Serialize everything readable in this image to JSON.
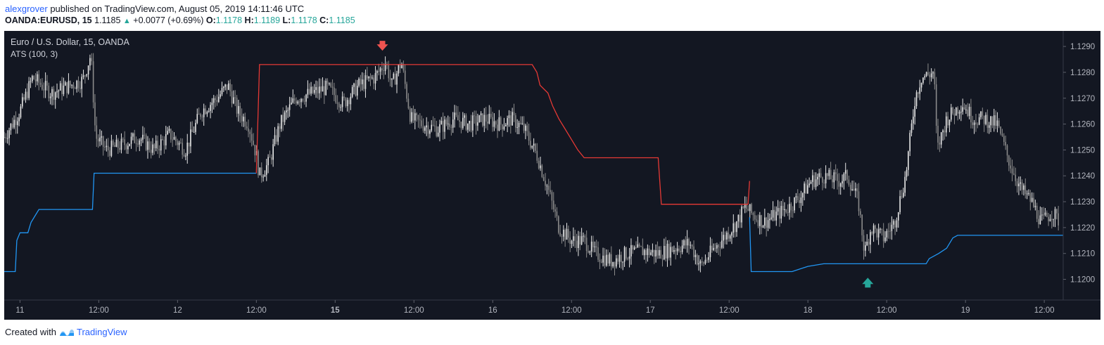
{
  "header": {
    "author": "alexgrover",
    "published_text": "published on TradingView.com, August 05, 2019 14:11:46 UTC",
    "symbol": "OANDA:EURUSD, 15",
    "last_price": "1.1185",
    "change_arrow": "▲",
    "change": "+0.0077 (+0.69%)",
    "o_label": "O:",
    "o_value": "1.1178",
    "h_label": "H:",
    "h_value": "1.1189",
    "l_label": "L:",
    "l_value": "1.1178",
    "c_label": "C:",
    "c_value": "1.1185"
  },
  "footer": {
    "created_with": "Created with",
    "brand": "TradingView",
    "logo_icon": "tradingview-logo-icon"
  },
  "colors": {
    "background": "#131722",
    "candle_up": "#e8e8e8",
    "candle_down": "#8a8a8a",
    "stop_short": "#e53935",
    "stop_long": "#2196f3",
    "sell_arrow": "#ef5350",
    "buy_arrow": "#26a69a",
    "axis_text": "#b2b5be"
  },
  "chart_data": {
    "type": "line",
    "title": "Euro / U.S. Dollar, 15, OANDA",
    "indicator": "ATS (100, 3)",
    "ylim": [
      1.1192,
      1.1296
    ],
    "y_ticks": [
      "1.1290",
      "1.1280",
      "1.1270",
      "1.1260",
      "1.1250",
      "1.1240",
      "1.1230",
      "1.1220",
      "1.1210",
      "1.1200"
    ],
    "x_ticks": [
      {
        "label": "11",
        "t": 0.5,
        "bold": false
      },
      {
        "label": "12:00",
        "t": 1.0,
        "bold": false
      },
      {
        "label": "12",
        "t": 1.5,
        "bold": false
      },
      {
        "label": "12:00",
        "t": 2.0,
        "bold": false
      },
      {
        "label": "15",
        "t": 2.5,
        "bold": true
      },
      {
        "label": "12:00",
        "t": 3.0,
        "bold": false
      },
      {
        "label": "16",
        "t": 3.5,
        "bold": false
      },
      {
        "label": "12:00",
        "t": 4.0,
        "bold": false
      },
      {
        "label": "17",
        "t": 4.5,
        "bold": false
      },
      {
        "label": "12:00",
        "t": 5.0,
        "bold": false
      },
      {
        "label": "18",
        "t": 5.5,
        "bold": false
      },
      {
        "label": "12:00",
        "t": 6.0,
        "bold": false
      },
      {
        "label": "19",
        "t": 6.5,
        "bold": false
      },
      {
        "label": "12:00",
        "t": 7.0,
        "bold": false
      }
    ],
    "x_range": [
      0.4,
      7.12
    ],
    "price_path": [
      [
        0.4,
        1.1255
      ],
      [
        0.5,
        1.1265
      ],
      [
        0.58,
        1.1278
      ],
      [
        0.7,
        1.1272
      ],
      [
        0.82,
        1.1275
      ],
      [
        0.9,
        1.1277
      ],
      [
        0.95,
        1.1287
      ],
      [
        0.98,
        1.1255
      ],
      [
        1.05,
        1.125
      ],
      [
        1.15,
        1.1252
      ],
      [
        1.25,
        1.1255
      ],
      [
        1.35,
        1.125
      ],
      [
        1.45,
        1.1256
      ],
      [
        1.55,
        1.125
      ],
      [
        1.65,
        1.1265
      ],
      [
        1.75,
        1.127
      ],
      [
        1.82,
        1.1275
      ],
      [
        1.88,
        1.1265
      ],
      [
        1.95,
        1.126
      ],
      [
        2.0,
        1.1248
      ],
      [
        2.02,
        1.124
      ],
      [
        2.08,
        1.1245
      ],
      [
        2.15,
        1.126
      ],
      [
        2.25,
        1.127
      ],
      [
        2.35,
        1.1272
      ],
      [
        2.45,
        1.1274
      ],
      [
        2.55,
        1.1268
      ],
      [
        2.65,
        1.1275
      ],
      [
        2.75,
        1.1278
      ],
      [
        2.82,
        1.1284
      ],
      [
        2.86,
        1.1275
      ],
      [
        2.92,
        1.1284
      ],
      [
        2.98,
        1.1262
      ],
      [
        3.05,
        1.126
      ],
      [
        3.15,
        1.1258
      ],
      [
        3.25,
        1.1262
      ],
      [
        3.35,
        1.126
      ],
      [
        3.45,
        1.1262
      ],
      [
        3.55,
        1.126
      ],
      [
        3.62,
        1.1262
      ],
      [
        3.7,
        1.1258
      ],
      [
        3.78,
        1.1248
      ],
      [
        3.85,
        1.1235
      ],
      [
        3.92,
        1.122
      ],
      [
        4.0,
        1.1215
      ],
      [
        4.08,
        1.1215
      ],
      [
        4.15,
        1.121
      ],
      [
        4.25,
        1.1207
      ],
      [
        4.35,
        1.121
      ],
      [
        4.45,
        1.1211
      ],
      [
        4.55,
        1.121
      ],
      [
        4.65,
        1.1212
      ],
      [
        4.75,
        1.1214
      ],
      [
        4.82,
        1.1205
      ],
      [
        4.88,
        1.121
      ],
      [
        4.95,
        1.1215
      ],
      [
        5.05,
        1.1222
      ],
      [
        5.1,
        1.1228
      ],
      [
        5.15,
        1.1225
      ],
      [
        5.22,
        1.1222
      ],
      [
        5.3,
        1.1225
      ],
      [
        5.38,
        1.1228
      ],
      [
        5.45,
        1.1232
      ],
      [
        5.52,
        1.1238
      ],
      [
        5.6,
        1.124
      ],
      [
        5.7,
        1.1238
      ],
      [
        5.75,
        1.124
      ],
      [
        5.82,
        1.123
      ],
      [
        5.86,
        1.121
      ],
      [
        5.9,
        1.122
      ],
      [
        5.98,
        1.1216
      ],
      [
        6.05,
        1.1222
      ],
      [
        6.12,
        1.124
      ],
      [
        6.18,
        1.127
      ],
      [
        6.22,
        1.1278
      ],
      [
        6.3,
        1.128
      ],
      [
        6.32,
        1.125
      ],
      [
        6.38,
        1.1262
      ],
      [
        6.48,
        1.1268
      ],
      [
        6.55,
        1.1262
      ],
      [
        6.62,
        1.1262
      ],
      [
        6.7,
        1.126
      ],
      [
        6.78,
        1.1245
      ],
      [
        6.85,
        1.1235
      ],
      [
        6.92,
        1.123
      ],
      [
        6.98,
        1.1222
      ],
      [
        7.05,
        1.1226
      ],
      [
        7.1,
        1.1222
      ]
    ],
    "series": [
      {
        "name": "ATS (100, 3)",
        "segments": [
          {
            "color_key": "stop_long",
            "points": [
              [
                0.4,
                1.1203
              ],
              [
                0.47,
                1.1203
              ],
              [
                0.48,
                1.1215
              ],
              [
                0.5,
                1.1218
              ],
              [
                0.55,
                1.1218
              ],
              [
                0.57,
                1.1222
              ],
              [
                0.6,
                1.1225
              ],
              [
                0.62,
                1.1227
              ],
              [
                0.96,
                1.1227
              ],
              [
                0.97,
                1.1241
              ],
              [
                2.0,
                1.1241
              ]
            ]
          },
          {
            "color_key": "stop_short",
            "points": [
              [
                2.0,
                1.1241
              ],
              [
                2.02,
                1.1283
              ],
              [
                2.05,
                1.1283
              ],
              [
                3.75,
                1.1283
              ],
              [
                3.78,
                1.128
              ],
              [
                3.8,
                1.1275
              ],
              [
                3.85,
                1.1272
              ],
              [
                3.88,
                1.1267
              ],
              [
                3.92,
                1.1262
              ],
              [
                3.96,
                1.1258
              ],
              [
                4.0,
                1.1254
              ],
              [
                4.04,
                1.125
              ],
              [
                4.08,
                1.1247
              ],
              [
                4.15,
                1.1247
              ],
              [
                4.55,
                1.1247
              ],
              [
                4.57,
                1.1229
              ],
              [
                5.12,
                1.1229
              ],
              [
                5.13,
                1.1238
              ]
            ]
          },
          {
            "color_key": "stop_long",
            "points": [
              [
                5.13,
                1.1224
              ],
              [
                5.14,
                1.1203
              ],
              [
                5.4,
                1.1203
              ],
              [
                5.45,
                1.1204
              ],
              [
                5.5,
                1.1205
              ],
              [
                5.6,
                1.1206
              ],
              [
                6.25,
                1.1206
              ],
              [
                6.27,
                1.1208
              ],
              [
                6.33,
                1.121
              ],
              [
                6.38,
                1.1212
              ],
              [
                6.42,
                1.1216
              ],
              [
                6.45,
                1.1217
              ],
              [
                7.12,
                1.1217
              ]
            ]
          }
        ]
      }
    ],
    "signals": [
      {
        "type": "sell",
        "t": 2.8,
        "price": 1.129
      },
      {
        "type": "buy",
        "t": 5.88,
        "price": 1.1199
      }
    ],
    "grid": false,
    "legend": "top-left"
  }
}
